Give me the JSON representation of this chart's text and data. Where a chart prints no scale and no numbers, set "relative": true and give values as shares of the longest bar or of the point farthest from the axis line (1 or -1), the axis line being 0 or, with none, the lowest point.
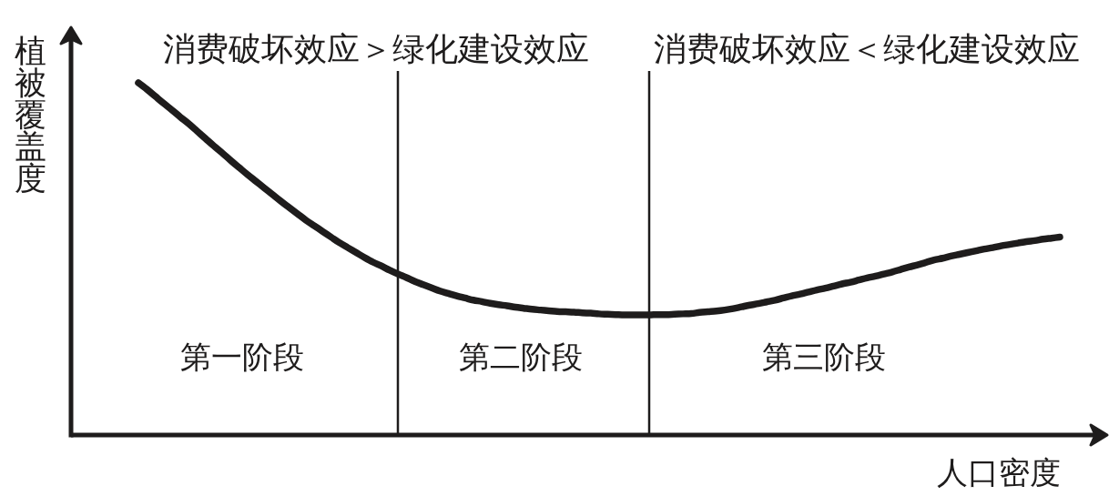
{
  "chart_data": {
    "type": "line",
    "relative": true,
    "xlabel": "人口密度",
    "ylabel": "植被覆盖度",
    "categories": [
      null,
      null,
      null,
      null,
      null,
      null,
      null,
      null,
      null,
      null,
      null,
      null,
      null,
      null,
      null,
      null,
      null,
      null,
      null,
      null,
      null,
      null,
      null,
      null,
      null,
      null,
      null,
      null,
      null,
      null,
      null,
      null,
      null,
      null,
      null,
      null,
      null,
      null,
      null,
      null,
      null,
      null,
      null,
      null,
      null,
      null,
      null,
      null,
      null,
      null,
      null,
      null,
      null,
      null,
      null,
      null,
      null,
      null,
      null,
      null,
      null,
      null,
      null,
      null,
      null,
      null,
      null,
      null,
      null,
      null,
      null,
      null,
      null,
      null,
      null,
      null,
      null,
      null,
      null,
      null,
      null,
      null,
      null,
      null,
      null,
      null,
      null,
      null,
      null,
      null,
      null,
      null,
      null,
      null,
      null,
      null,
      null,
      null,
      null,
      null,
      null,
      null,
      null,
      null,
      null,
      null,
      null,
      null,
      null,
      null,
      null
    ],
    "series": [
      {
        "color": "#1e1c1c",
        "values": [
          1.0,
          0.982,
          0.962,
          0.942,
          0.923,
          0.903,
          0.884,
          0.863,
          0.842,
          0.821,
          0.801,
          0.78,
          0.76,
          0.74,
          0.721,
          0.702,
          0.683,
          0.664,
          0.646,
          0.628,
          0.61,
          0.594,
          0.578,
          0.562,
          0.546,
          0.532,
          0.518,
          0.504,
          0.491,
          0.48,
          0.468,
          0.457,
          0.447,
          0.436,
          0.427,
          0.418,
          0.409,
          0.402,
          0.395,
          0.389,
          0.383,
          0.379,
          0.374,
          0.37,
          0.367,
          0.363,
          0.36,
          0.357,
          0.355,
          0.353,
          0.351,
          0.35,
          0.349,
          0.347,
          0.346,
          0.344,
          0.343,
          0.342,
          0.341,
          0.341,
          0.341,
          0.341,
          0.342,
          0.342,
          0.343,
          0.344,
          0.345,
          0.348,
          0.35,
          0.352,
          0.355,
          0.359,
          0.364,
          0.369,
          0.373,
          0.378,
          0.383,
          0.389,
          0.395,
          0.4,
          0.406,
          0.412,
          0.417,
          0.423,
          0.429,
          0.434,
          0.44,
          0.446,
          0.451,
          0.457,
          0.463,
          0.47,
          0.477,
          0.483,
          0.49,
          0.497,
          0.502,
          0.508,
          0.513,
          0.518,
          0.523,
          0.528,
          0.532,
          0.537,
          0.541,
          0.545,
          0.549,
          0.552,
          0.556,
          0.559,
          0.562
        ]
      }
    ],
    "annotations": [
      "消费破坏效应＞绿化建设效应",
      "消费破坏效应＜绿化建设效应",
      "第一阶段",
      "第二阶段",
      "第三阶段"
    ]
  }
}
